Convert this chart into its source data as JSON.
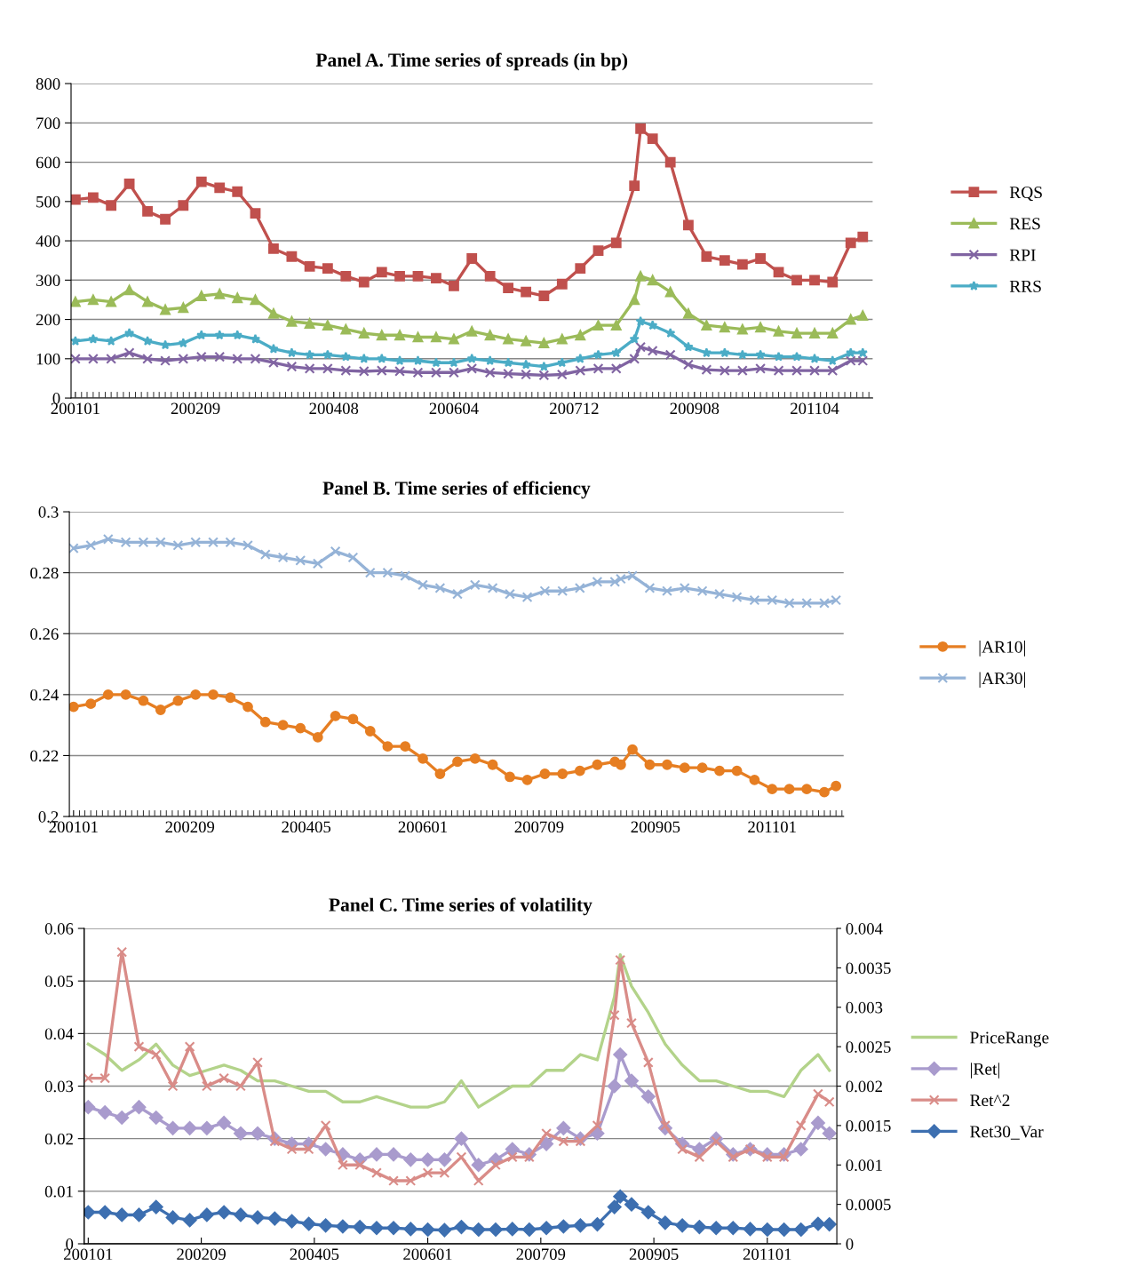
{
  "chart_data": [
    {
      "type": "line",
      "title": "Panel A. Time series of spreads (in bp)",
      "grid": "y",
      "legend": "right",
      "x": [
        "2001-01",
        "2001-04",
        "2001-07",
        "2001-10",
        "2002-01",
        "2002-04",
        "2002-07",
        "2002-10",
        "2003-01",
        "2003-04",
        "2003-07",
        "2003-10",
        "2004-01",
        "2004-04",
        "2004-07",
        "2004-10",
        "2005-01",
        "2005-04",
        "2005-07",
        "2005-10",
        "2006-01",
        "2006-04",
        "2006-07",
        "2006-10",
        "2007-01",
        "2007-04",
        "2007-07",
        "2007-10",
        "2008-01",
        "2008-04",
        "2008-07",
        "2008-10",
        "2008-11",
        "2009-01",
        "2009-04",
        "2009-07",
        "2009-10",
        "2010-01",
        "2010-04",
        "2010-07",
        "2010-10",
        "2011-01",
        "2011-04",
        "2011-07",
        "2011-10",
        "2011-12"
      ],
      "xlim": [
        "2000-12-10",
        "2012-01-20"
      ],
      "xticks": [
        {
          "value": "2001-01",
          "label": "200101"
        },
        {
          "value": "2002-09",
          "label": "200209"
        },
        {
          "value": "2004-08",
          "label": "200408"
        },
        {
          "value": "2006-04",
          "label": "200604"
        },
        {
          "value": "2007-12",
          "label": "200712"
        },
        {
          "value": "2009-08",
          "label": "200908"
        },
        {
          "value": "2011-04",
          "label": "201104"
        }
      ],
      "ylim": [
        0,
        800
      ],
      "yticks": [
        0,
        100,
        200,
        300,
        400,
        500,
        600,
        700,
        800
      ],
      "series": [
        {
          "name": "RQS",
          "color": "#c0504d",
          "marker": "square",
          "values": [
            505,
            510,
            490,
            545,
            475,
            455,
            490,
            550,
            535,
            525,
            470,
            380,
            360,
            335,
            330,
            310,
            295,
            320,
            310,
            310,
            305,
            285,
            355,
            310,
            280,
            270,
            260,
            290,
            330,
            375,
            395,
            540,
            685,
            660,
            600,
            440,
            360,
            350,
            340,
            355,
            320,
            300,
            300,
            295,
            395,
            410
          ]
        },
        {
          "name": "RES",
          "color": "#9bbb59",
          "marker": "triangle",
          "values": [
            245,
            250,
            245,
            275,
            245,
            225,
            230,
            260,
            265,
            255,
            250,
            215,
            195,
            190,
            185,
            175,
            165,
            160,
            160,
            155,
            155,
            150,
            170,
            160,
            150,
            145,
            140,
            150,
            160,
            185,
            185,
            250,
            310,
            300,
            270,
            215,
            185,
            180,
            175,
            180,
            170,
            165,
            165,
            165,
            200,
            210
          ]
        },
        {
          "name": "RPI",
          "color": "#8064a2",
          "marker": "cross",
          "values": [
            100,
            100,
            100,
            115,
            100,
            95,
            100,
            105,
            105,
            100,
            100,
            90,
            80,
            75,
            75,
            70,
            68,
            70,
            68,
            65,
            65,
            65,
            75,
            65,
            62,
            60,
            58,
            60,
            70,
            75,
            75,
            100,
            130,
            120,
            110,
            85,
            72,
            70,
            70,
            75,
            70,
            70,
            70,
            70,
            95,
            95
          ]
        },
        {
          "name": "RRS",
          "color": "#4bacc6",
          "marker": "star",
          "values": [
            145,
            150,
            145,
            165,
            145,
            135,
            140,
            160,
            160,
            160,
            150,
            125,
            115,
            110,
            110,
            105,
            100,
            100,
            95,
            95,
            90,
            90,
            100,
            95,
            90,
            85,
            80,
            90,
            100,
            110,
            115,
            150,
            195,
            185,
            165,
            130,
            115,
            115,
            110,
            110,
            105,
            105,
            100,
            95,
            115,
            115
          ]
        }
      ]
    },
    {
      "type": "line",
      "title": "Panel B. Time series of efficiency",
      "grid": "y",
      "legend": "right",
      "x": [
        "2001-01",
        "2001-04",
        "2001-07",
        "2001-10",
        "2002-01",
        "2002-04",
        "2002-07",
        "2002-10",
        "2003-01",
        "2003-04",
        "2003-07",
        "2003-10",
        "2004-01",
        "2004-04",
        "2004-07",
        "2004-10",
        "2005-01",
        "2005-04",
        "2005-07",
        "2005-10",
        "2006-01",
        "2006-04",
        "2006-07",
        "2006-10",
        "2007-01",
        "2007-04",
        "2007-07",
        "2007-10",
        "2008-01",
        "2008-04",
        "2008-07",
        "2008-10",
        "2008-11",
        "2009-01",
        "2009-04",
        "2009-07",
        "2009-10",
        "2010-01",
        "2010-04",
        "2010-07",
        "2010-10",
        "2011-01",
        "2011-04",
        "2011-07",
        "2011-10",
        "2011-12"
      ],
      "xlim": [
        "2000-12-10",
        "2012-01-10"
      ],
      "xticks": [
        {
          "value": "2001-01",
          "label": "200101"
        },
        {
          "value": "2002-09",
          "label": "200209"
        },
        {
          "value": "2004-05",
          "label": "200405"
        },
        {
          "value": "2006-01",
          "label": "200601"
        },
        {
          "value": "2007-09",
          "label": "200709"
        },
        {
          "value": "2009-05",
          "label": "200905"
        },
        {
          "value": "2011-01",
          "label": "201101"
        }
      ],
      "ylim": [
        0.2,
        0.3
      ],
      "yticks": [
        0.2,
        0.22,
        0.24,
        0.26,
        0.28,
        0.3
      ],
      "series": [
        {
          "name": "|AR10|",
          "color": "#e67e22",
          "marker": "circle",
          "values": [
            0.236,
            0.237,
            0.24,
            0.24,
            0.238,
            0.235,
            0.238,
            0.24,
            0.24,
            0.239,
            0.236,
            0.231,
            0.23,
            0.229,
            0.226,
            0.233,
            0.232,
            0.228,
            0.223,
            0.223,
            0.219,
            0.214,
            0.218,
            0.219,
            0.217,
            0.213,
            0.212,
            0.214,
            0.214,
            0.215,
            0.217,
            0.218,
            0.217,
            0.222,
            0.217,
            0.217,
            0.216,
            0.216,
            0.215,
            0.215,
            0.212,
            0.209,
            0.209,
            0.209,
            0.208,
            0.21
          ]
        },
        {
          "name": "|AR30|",
          "color": "#95b3d7",
          "marker": "cross",
          "values": [
            0.288,
            0.289,
            0.291,
            0.29,
            0.29,
            0.29,
            0.289,
            0.29,
            0.29,
            0.29,
            0.289,
            0.286,
            0.285,
            0.284,
            0.283,
            0.287,
            0.285,
            0.28,
            0.28,
            0.279,
            0.276,
            0.275,
            0.273,
            0.276,
            0.275,
            0.273,
            0.272,
            0.274,
            0.274,
            0.275,
            0.277,
            0.277,
            0.278,
            0.279,
            0.275,
            0.274,
            0.275,
            0.274,
            0.273,
            0.272,
            0.271,
            0.271,
            0.27,
            0.27,
            0.27,
            0.271
          ]
        }
      ]
    },
    {
      "type": "line",
      "title": "Panel C. Time series of volatility",
      "grid": "y",
      "legend": "right",
      "x": [
        "2001-01",
        "2001-04",
        "2001-07",
        "2001-10",
        "2002-01",
        "2002-04",
        "2002-07",
        "2002-10",
        "2003-01",
        "2003-04",
        "2003-07",
        "2003-10",
        "2004-01",
        "2004-04",
        "2004-07",
        "2004-10",
        "2005-01",
        "2005-04",
        "2005-07",
        "2005-10",
        "2006-01",
        "2006-04",
        "2006-07",
        "2006-10",
        "2007-01",
        "2007-04",
        "2007-07",
        "2007-10",
        "2008-01",
        "2008-04",
        "2008-07",
        "2008-10",
        "2008-11",
        "2009-01",
        "2009-04",
        "2009-07",
        "2009-10",
        "2010-01",
        "2010-04",
        "2010-07",
        "2010-10",
        "2011-01",
        "2011-04",
        "2011-07",
        "2011-10",
        "2011-12"
      ],
      "xlim": [
        "2000-12-10",
        "2012-01-10"
      ],
      "xticks": [
        {
          "value": "2001-01",
          "label": "200101"
        },
        {
          "value": "2002-09",
          "label": "200209"
        },
        {
          "value": "2004-05",
          "label": "200405"
        },
        {
          "value": "2006-01",
          "label": "200601"
        },
        {
          "value": "2007-09",
          "label": "200709"
        },
        {
          "value": "2009-05",
          "label": "200905"
        },
        {
          "value": "2011-01",
          "label": "201101"
        }
      ],
      "ylim": [
        0,
        0.06
      ],
      "yticks": [
        0,
        0.01,
        0.02,
        0.03,
        0.04,
        0.05,
        0.06
      ],
      "y2lim": [
        0,
        0.004
      ],
      "y2ticks": [
        0,
        0.0005,
        0.001,
        0.0015,
        0.002,
        0.0025,
        0.003,
        0.0035,
        0.004
      ],
      "series": [
        {
          "name": "PriceRange",
          "color": "#b3d38a",
          "marker": "none",
          "values": [
            0.038,
            0.036,
            0.033,
            0.035,
            0.038,
            0.034,
            0.032,
            0.033,
            0.034,
            0.033,
            0.031,
            0.031,
            0.03,
            0.029,
            0.029,
            0.027,
            0.027,
            0.028,
            0.027,
            0.026,
            0.026,
            0.027,
            0.031,
            0.026,
            0.028,
            0.03,
            0.03,
            0.033,
            0.033,
            0.036,
            0.035,
            0.047,
            0.055,
            0.049,
            0.044,
            0.038,
            0.034,
            0.031,
            0.031,
            0.03,
            0.029,
            0.029,
            0.028,
            0.033,
            0.036,
            0.033
          ]
        },
        {
          "name": "|Ret|",
          "color": "#a99bcd",
          "marker": "diamond",
          "values": [
            0.026,
            0.025,
            0.024,
            0.026,
            0.024,
            0.022,
            0.022,
            0.022,
            0.023,
            0.021,
            0.021,
            0.02,
            0.019,
            0.019,
            0.018,
            0.017,
            0.016,
            0.017,
            0.017,
            0.016,
            0.016,
            0.016,
            0.02,
            0.015,
            0.016,
            0.018,
            0.017,
            0.019,
            0.022,
            0.02,
            0.021,
            0.03,
            0.036,
            0.031,
            0.028,
            0.022,
            0.019,
            0.018,
            0.02,
            0.017,
            0.018,
            0.017,
            0.017,
            0.018,
            0.023,
            0.021
          ]
        },
        {
          "name": "Ret^2",
          "color": "#d98c88",
          "marker": "cross",
          "axis": "y2",
          "values": [
            0.0021,
            0.0021,
            0.0037,
            0.0025,
            0.0024,
            0.002,
            0.0025,
            0.002,
            0.0021,
            0.002,
            0.0023,
            0.0013,
            0.0012,
            0.0012,
            0.0015,
            0.001,
            0.001,
            0.0009,
            0.0008,
            0.0008,
            0.0009,
            0.0009,
            0.0011,
            0.0008,
            0.001,
            0.0011,
            0.0011,
            0.0014,
            0.0013,
            0.0013,
            0.0015,
            0.0029,
            0.0036,
            0.0028,
            0.0023,
            0.0015,
            0.0012,
            0.0011,
            0.0013,
            0.0011,
            0.0012,
            0.0011,
            0.0011,
            0.0015,
            0.0019,
            0.0018
          ]
        },
        {
          "name": "Ret30_Var",
          "color": "#3d6fb0",
          "marker": "diamond",
          "values": [
            0.006,
            0.006,
            0.0055,
            0.0055,
            0.007,
            0.005,
            0.0045,
            0.0055,
            0.006,
            0.0055,
            0.005,
            0.0048,
            0.0043,
            0.0038,
            0.0035,
            0.0033,
            0.0032,
            0.003,
            0.003,
            0.0028,
            0.0027,
            0.0026,
            0.0032,
            0.0027,
            0.0027,
            0.0028,
            0.0027,
            0.003,
            0.0033,
            0.0035,
            0.0037,
            0.007,
            0.009,
            0.0075,
            0.006,
            0.004,
            0.0035,
            0.0032,
            0.003,
            0.003,
            0.0028,
            0.0027,
            0.0027,
            0.0027,
            0.0038,
            0.0037
          ]
        }
      ]
    }
  ]
}
